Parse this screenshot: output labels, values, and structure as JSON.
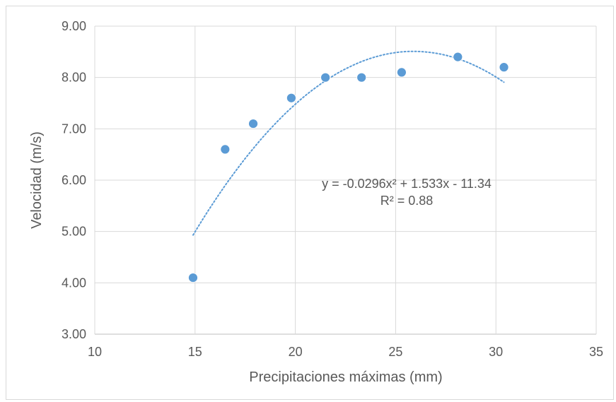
{
  "chart_data": {
    "type": "scatter",
    "title": "",
    "xlabel": "Precipitaciones máximas (mm)",
    "ylabel": "Velocidad (m/s)",
    "xlim": [
      10,
      35
    ],
    "ylim": [
      3.0,
      9.0
    ],
    "x_ticks": [
      "10",
      "15",
      "20",
      "25",
      "30",
      "35"
    ],
    "y_ticks": [
      "3.00",
      "4.00",
      "5.00",
      "6.00",
      "7.00",
      "8.00",
      "9.00"
    ],
    "grid": true,
    "series": [
      {
        "x": [
          14.9,
          16.5,
          17.9,
          19.8,
          21.5,
          23.3,
          25.3,
          28.1,
          30.4
        ],
        "y": [
          4.1,
          6.6,
          7.1,
          7.6,
          8.0,
          8.0,
          8.1,
          8.4,
          8.2
        ],
        "color": "#5b9bd5"
      }
    ],
    "trendline": {
      "type": "polynomial",
      "order": 2,
      "coefficients": [
        -0.0296,
        1.533,
        -11.34
      ],
      "x_range": [
        14.9,
        30.4
      ],
      "style": "dotted",
      "color": "#5b9bd5",
      "equation_label": "y = -0.0296x² + 1.533x - 11.34",
      "r2_label": "R² = 0.88"
    }
  }
}
